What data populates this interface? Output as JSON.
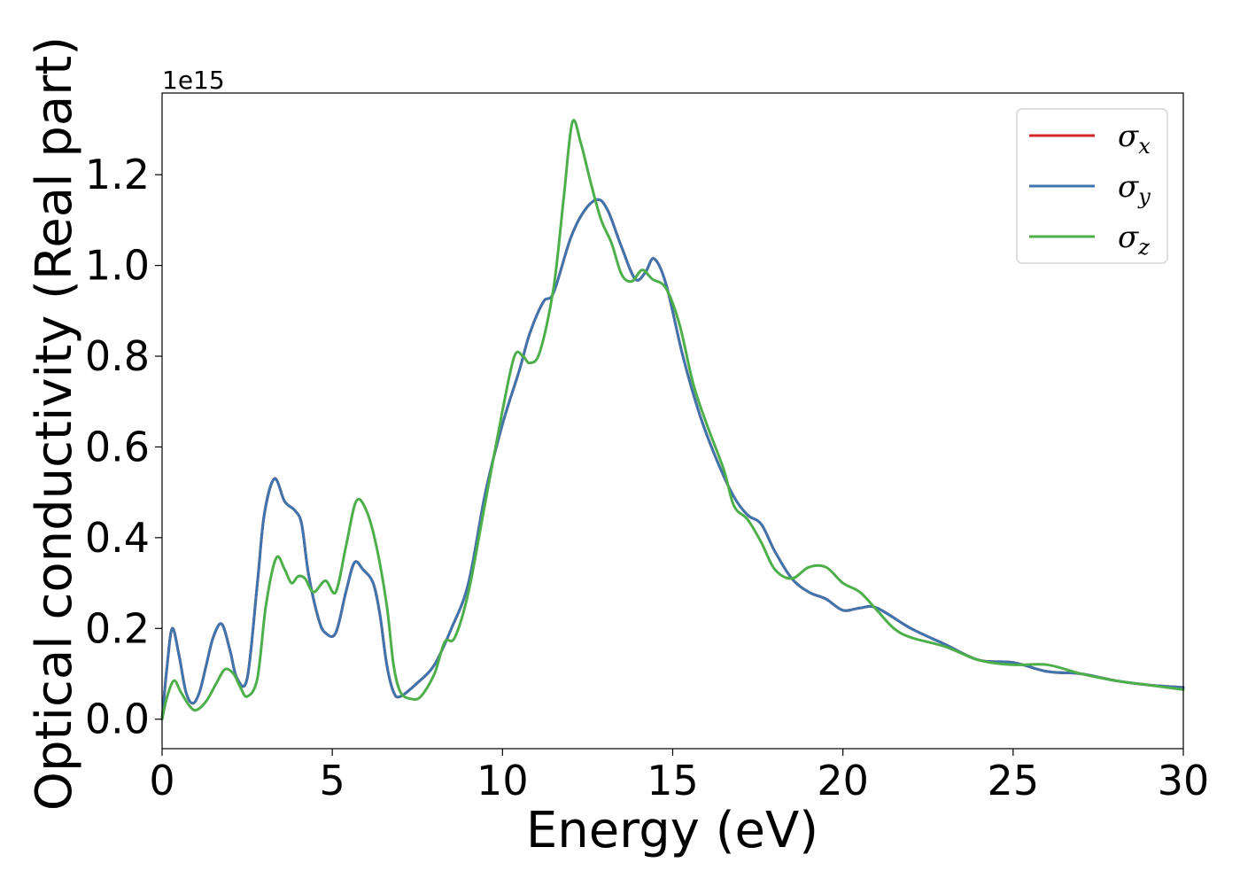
{
  "chart_data": {
    "type": "line",
    "title": "",
    "xlabel": "Energy (eV)",
    "ylabel": "Optical conductivity (Real part)",
    "y_offset_label": "1e15",
    "xlim": [
      0,
      30
    ],
    "ylim": [
      -0.065,
      1.38
    ],
    "xticks": [
      0,
      5,
      10,
      15,
      20,
      25,
      30
    ],
    "yticks": [
      0.0,
      0.2,
      0.4,
      0.6,
      0.8,
      1.0,
      1.2
    ],
    "xtick_labels": [
      "0",
      "5",
      "10",
      "15",
      "20",
      "25",
      "30"
    ],
    "ytick_labels": [
      "0.0",
      "0.2",
      "0.4",
      "0.6",
      "0.8",
      "1.0",
      "1.2"
    ],
    "grid": false,
    "legend_position": "top-right",
    "series": [
      {
        "name": "σ",
        "subscript": "x",
        "color": "#d62728",
        "x": [
          0,
          0.15,
          0.3,
          0.5,
          0.7,
          0.9,
          1.1,
          1.3,
          1.5,
          1.75,
          2.0,
          2.2,
          2.5,
          2.8,
          3.0,
          3.3,
          3.6,
          3.9,
          4.1,
          4.3,
          4.6,
          4.8,
          5.1,
          5.4,
          5.65,
          5.9,
          6.2,
          6.4,
          6.6,
          6.8,
          7.0,
          7.5,
          8.0,
          8.5,
          9.0,
          9.5,
          10.0,
          10.5,
          10.8,
          11.2,
          11.5,
          12.0,
          12.4,
          12.8,
          13.1,
          13.5,
          13.9,
          14.2,
          14.45,
          14.8,
          15.3,
          15.8,
          16.3,
          16.8,
          17.2,
          17.6,
          18.0,
          18.5,
          19.0,
          19.5,
          20.0,
          20.5,
          21.0,
          22.0,
          23.0,
          24.0,
          25.0,
          26.0,
          27.0,
          28.0,
          29.0,
          30.0
        ],
        "y": [
          0.0,
          0.12,
          0.2,
          0.14,
          0.06,
          0.035,
          0.06,
          0.12,
          0.18,
          0.21,
          0.15,
          0.09,
          0.09,
          0.3,
          0.45,
          0.53,
          0.48,
          0.46,
          0.43,
          0.32,
          0.22,
          0.19,
          0.19,
          0.28,
          0.345,
          0.33,
          0.3,
          0.23,
          0.12,
          0.06,
          0.05,
          0.08,
          0.12,
          0.2,
          0.3,
          0.5,
          0.65,
          0.77,
          0.85,
          0.92,
          0.94,
          1.06,
          1.12,
          1.145,
          1.12,
          1.04,
          0.97,
          0.985,
          1.015,
          0.96,
          0.8,
          0.67,
          0.57,
          0.49,
          0.45,
          0.43,
          0.37,
          0.31,
          0.28,
          0.265,
          0.24,
          0.245,
          0.245,
          0.2,
          0.165,
          0.13,
          0.125,
          0.105,
          0.1,
          0.085,
          0.075,
          0.07
        ]
      },
      {
        "name": "σ",
        "subscript": "y",
        "color": "#3f74ad",
        "x": [
          0,
          0.15,
          0.3,
          0.5,
          0.7,
          0.9,
          1.1,
          1.3,
          1.5,
          1.75,
          2.0,
          2.2,
          2.5,
          2.8,
          3.0,
          3.3,
          3.6,
          3.9,
          4.1,
          4.3,
          4.6,
          4.8,
          5.1,
          5.4,
          5.65,
          5.9,
          6.2,
          6.4,
          6.6,
          6.8,
          7.0,
          7.5,
          8.0,
          8.5,
          9.0,
          9.5,
          10.0,
          10.5,
          10.8,
          11.2,
          11.5,
          12.0,
          12.4,
          12.8,
          13.1,
          13.5,
          13.9,
          14.2,
          14.45,
          14.8,
          15.3,
          15.8,
          16.3,
          16.8,
          17.2,
          17.6,
          18.0,
          18.5,
          19.0,
          19.5,
          20.0,
          20.5,
          21.0,
          22.0,
          23.0,
          24.0,
          25.0,
          26.0,
          27.0,
          28.0,
          29.0,
          30.0
        ],
        "y": [
          0.0,
          0.12,
          0.2,
          0.14,
          0.06,
          0.035,
          0.06,
          0.12,
          0.18,
          0.21,
          0.15,
          0.09,
          0.09,
          0.3,
          0.45,
          0.53,
          0.48,
          0.46,
          0.43,
          0.32,
          0.22,
          0.19,
          0.19,
          0.28,
          0.345,
          0.33,
          0.3,
          0.23,
          0.12,
          0.06,
          0.05,
          0.08,
          0.12,
          0.2,
          0.3,
          0.5,
          0.65,
          0.77,
          0.85,
          0.92,
          0.94,
          1.06,
          1.12,
          1.145,
          1.12,
          1.04,
          0.97,
          0.985,
          1.015,
          0.96,
          0.8,
          0.67,
          0.57,
          0.49,
          0.45,
          0.43,
          0.37,
          0.31,
          0.28,
          0.265,
          0.24,
          0.245,
          0.245,
          0.2,
          0.165,
          0.13,
          0.125,
          0.105,
          0.1,
          0.085,
          0.075,
          0.07
        ]
      },
      {
        "name": "σ",
        "subscript": "z",
        "color": "#4daf4a",
        "x": [
          0,
          0.15,
          0.35,
          0.55,
          0.8,
          1.0,
          1.3,
          1.6,
          1.85,
          2.1,
          2.3,
          2.5,
          2.8,
          3.05,
          3.35,
          3.6,
          3.8,
          4.0,
          4.2,
          4.45,
          4.8,
          5.1,
          5.4,
          5.7,
          6.0,
          6.3,
          6.6,
          6.8,
          7.0,
          7.3,
          7.6,
          8.0,
          8.3,
          8.6,
          9.0,
          9.5,
          10.0,
          10.35,
          10.6,
          10.8,
          11.1,
          11.5,
          11.8,
          12.05,
          12.3,
          12.6,
          12.9,
          13.2,
          13.5,
          13.8,
          14.1,
          14.4,
          14.8,
          15.2,
          15.6,
          16.0,
          16.5,
          16.8,
          17.2,
          17.6,
          18.0,
          18.5,
          19.0,
          19.5,
          20.0,
          20.5,
          21.0,
          21.5,
          22.0,
          23.0,
          24.0,
          25.0,
          26.0,
          27.0,
          28.0,
          29.0,
          30.0
        ],
        "y": [
          0.0,
          0.05,
          0.085,
          0.06,
          0.03,
          0.02,
          0.04,
          0.08,
          0.11,
          0.1,
          0.07,
          0.05,
          0.09,
          0.25,
          0.355,
          0.33,
          0.3,
          0.315,
          0.31,
          0.28,
          0.305,
          0.28,
          0.38,
          0.48,
          0.46,
          0.38,
          0.25,
          0.12,
          0.06,
          0.045,
          0.05,
          0.1,
          0.17,
          0.18,
          0.28,
          0.48,
          0.68,
          0.8,
          0.8,
          0.785,
          0.81,
          0.95,
          1.15,
          1.315,
          1.27,
          1.18,
          1.1,
          1.05,
          0.98,
          0.965,
          0.99,
          0.97,
          0.95,
          0.87,
          0.74,
          0.65,
          0.55,
          0.47,
          0.44,
          0.39,
          0.33,
          0.31,
          0.335,
          0.335,
          0.3,
          0.28,
          0.24,
          0.2,
          0.18,
          0.16,
          0.13,
          0.12,
          0.12,
          0.1,
          0.085,
          0.075,
          0.065
        ]
      }
    ]
  }
}
